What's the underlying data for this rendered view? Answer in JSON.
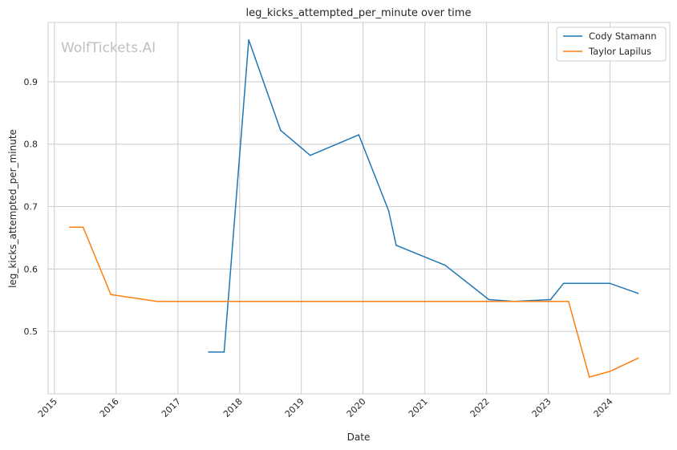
{
  "chart_data": {
    "type": "line",
    "title": "leg_kicks_attempted_per_minute over time",
    "xlabel": "Date",
    "ylabel": "leg_kicks_attempted_per_minute",
    "watermark": "WolfTickets.AI",
    "x_ticks": [
      "2015",
      "2016",
      "2017",
      "2018",
      "2019",
      "2020",
      "2021",
      "2022",
      "2023",
      "2024"
    ],
    "y_ticks": [
      "0.5",
      "0.6",
      "0.7",
      "0.8",
      "0.9"
    ],
    "xlim": [
      "2014-11-25",
      "2024-12-20"
    ],
    "ylim": [
      0.4,
      0.995
    ],
    "grid": true,
    "legend_position": "top-right",
    "series": [
      {
        "name": "Cody Stamann",
        "color": "#1f77b4",
        "points": [
          [
            "2017-07-01",
            0.467
          ],
          [
            "2017-10-01",
            0.467
          ],
          [
            "2018-02-24",
            0.967
          ],
          [
            "2018-09-01",
            0.822
          ],
          [
            "2019-02-23",
            0.782
          ],
          [
            "2019-12-07",
            0.815
          ],
          [
            "2020-06-01",
            0.693
          ],
          [
            "2020-07-15",
            0.638
          ],
          [
            "2021-05-01",
            0.606
          ],
          [
            "2022-01-15",
            0.551
          ],
          [
            "2022-06-15",
            0.548
          ],
          [
            "2023-01-15",
            0.551
          ],
          [
            "2023-04-01",
            0.577
          ],
          [
            "2024-01-01",
            0.577
          ],
          [
            "2024-06-15",
            0.561
          ]
        ]
      },
      {
        "name": "Taylor Lapilus",
        "color": "#ff7f0e",
        "points": [
          [
            "2015-04-01",
            0.667
          ],
          [
            "2015-06-20",
            0.667
          ],
          [
            "2015-12-01",
            0.559
          ],
          [
            "2016-09-01",
            0.548
          ],
          [
            "2023-05-01",
            0.548
          ],
          [
            "2023-09-01",
            0.427
          ],
          [
            "2024-01-01",
            0.436
          ],
          [
            "2024-06-15",
            0.457
          ]
        ]
      }
    ]
  }
}
